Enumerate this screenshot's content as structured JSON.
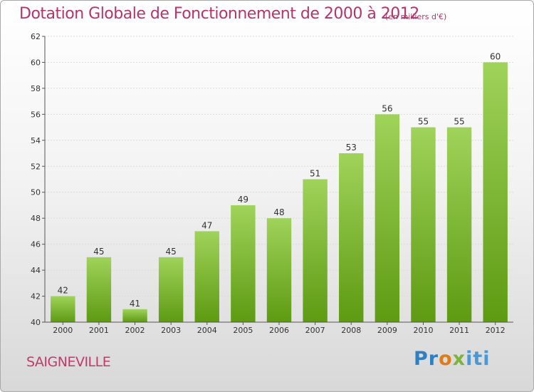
{
  "title": "Dotation Globale de Fonctionnement de 2000 à 2012",
  "subtitle": "(en milliers d'€)",
  "commune": "SAIGNEVILLE",
  "logo": {
    "p1": "Pr",
    "p2": "o",
    "p3": "x",
    "p4": "iti"
  },
  "colors": {
    "title": "#b5346b",
    "bar_top": "#9fd35a",
    "bar_bottom": "#5e9a12"
  },
  "chart_data": {
    "type": "bar",
    "title": "Dotation Globale de Fonctionnement de 2000 à 2012",
    "subtitle": "(en milliers d'€)",
    "categories": [
      "2000",
      "2001",
      "2002",
      "2003",
      "2004",
      "2005",
      "2006",
      "2007",
      "2008",
      "2009",
      "2010",
      "2011",
      "2012"
    ],
    "values": [
      42,
      45,
      41,
      45,
      47,
      49,
      48,
      51,
      53,
      56,
      55,
      55,
      60
    ],
    "ylim": [
      40,
      62
    ],
    "yticks": [
      40,
      42,
      44,
      46,
      48,
      50,
      52,
      54,
      56,
      58,
      60,
      62
    ],
    "grid": true,
    "legend": "none"
  }
}
